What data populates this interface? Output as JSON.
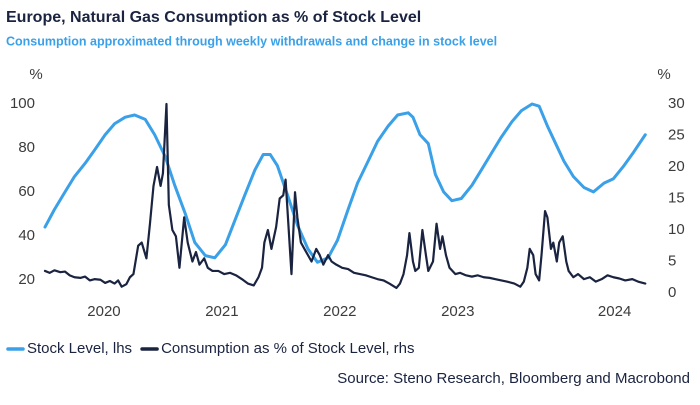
{
  "chart_data": {
    "type": "line",
    "title": "Europe, Natural Gas Consumption as % of Stock Level",
    "subtitle": "Consumption approximated through weekly withdrawals and change in stock level",
    "ylabel": "%",
    "y2label": "%",
    "source": "Source: Steno Research, Bloomberg and Macrobond",
    "xlim": [
      2019.8,
      2024.93
    ],
    "xticks": [
      {
        "value": 2020.3,
        "label": "2020"
      },
      {
        "value": 2021.3,
        "label": "2021"
      },
      {
        "value": 2022.3,
        "label": "2022"
      },
      {
        "value": 2023.3,
        "label": "2023"
      },
      {
        "value": 2024.63,
        "label": "2024"
      }
    ],
    "ylim": [
      14,
      100
    ],
    "yticks": [
      20,
      40,
      60,
      80,
      100
    ],
    "y2lim": [
      0,
      30
    ],
    "y2ticks": [
      0,
      5,
      10,
      15,
      20,
      25,
      30
    ],
    "grid": false,
    "legend": "bottom-left",
    "series": [
      {
        "name": "Stock Level, lhs",
        "color": "#3aa0e8",
        "axis": "y",
        "x": [
          2019.8,
          2019.88,
          2019.97,
          2020.05,
          2020.14,
          2020.22,
          2020.31,
          2020.39,
          2020.48,
          2020.56,
          2020.65,
          2020.73,
          2020.82,
          2020.9,
          2020.99,
          2021.07,
          2021.16,
          2021.24,
          2021.33,
          2021.41,
          2021.49,
          2021.58,
          2021.65,
          2021.71,
          2021.77,
          2021.86,
          2021.94,
          2022.03,
          2022.11,
          2022.2,
          2022.28,
          2022.37,
          2022.45,
          2022.54,
          2022.62,
          2022.71,
          2022.79,
          2022.88,
          2022.92,
          2022.98,
          2023.05,
          2023.11,
          2023.18,
          2023.25,
          2023.33,
          2023.42,
          2023.5,
          2023.59,
          2023.67,
          2023.76,
          2023.84,
          2023.93,
          2023.99,
          2024.06,
          2024.13,
          2024.2,
          2024.28,
          2024.37,
          2024.45,
          2024.54,
          2024.62,
          2024.71,
          2024.79,
          2024.89
        ],
        "values": [
          44,
          52,
          60,
          67,
          73,
          79,
          86,
          91,
          94,
          95,
          93,
          86,
          76,
          63,
          50,
          37,
          31,
          30,
          36,
          47,
          58,
          70,
          77,
          77,
          72,
          58,
          45,
          34,
          28,
          30,
          38,
          52,
          64,
          74,
          83,
          90,
          95,
          96,
          94,
          86,
          82,
          68,
          60,
          56,
          57,
          63,
          70,
          78,
          85,
          92,
          97,
          100,
          99,
          90,
          82,
          74,
          67,
          62,
          60,
          64,
          66,
          72,
          78,
          86
        ]
      },
      {
        "name": "Consumption as % of Stock Level, rhs",
        "color": "#1a2340",
        "axis": "y2",
        "x": [
          2019.8,
          2019.84,
          2019.88,
          2019.93,
          2019.97,
          2020.01,
          2020.05,
          2020.1,
          2020.14,
          2020.18,
          2020.22,
          2020.27,
          2020.31,
          2020.35,
          2020.39,
          2020.42,
          2020.45,
          2020.49,
          2020.52,
          2020.55,
          2020.59,
          2020.62,
          2020.66,
          2020.69,
          2020.72,
          2020.75,
          2020.78,
          2020.8,
          2020.83,
          2020.85,
          2020.88,
          2020.91,
          2020.94,
          2020.98,
          2021.01,
          2021.05,
          2021.08,
          2021.11,
          2021.15,
          2021.18,
          2021.22,
          2021.27,
          2021.32,
          2021.37,
          2021.42,
          2021.47,
          2021.52,
          2021.57,
          2021.61,
          2021.64,
          2021.66,
          2021.69,
          2021.72,
          2021.76,
          2021.79,
          2021.82,
          2021.84,
          2021.87,
          2021.89,
          2021.92,
          2021.94,
          2021.97,
          2022.0,
          2022.03,
          2022.06,
          2022.1,
          2022.13,
          2022.16,
          2022.2,
          2022.23,
          2022.27,
          2022.32,
          2022.37,
          2022.42,
          2022.47,
          2022.52,
          2022.57,
          2022.62,
          2022.67,
          2022.72,
          2022.78,
          2022.81,
          2022.84,
          2022.87,
          2022.89,
          2022.92,
          2022.94,
          2022.97,
          2023.0,
          2023.03,
          2023.05,
          2023.09,
          2023.12,
          2023.15,
          2023.17,
          2023.2,
          2023.23,
          2023.28,
          2023.32,
          2023.37,
          2023.42,
          2023.47,
          2023.52,
          2023.57,
          2023.62,
          2023.67,
          2023.72,
          2023.78,
          2023.83,
          2023.86,
          2023.89,
          2023.91,
          2023.94,
          2023.96,
          2023.99,
          2024.01,
          2024.04,
          2024.06,
          2024.09,
          2024.11,
          2024.14,
          2024.16,
          2024.19,
          2024.22,
          2024.24,
          2024.28,
          2024.32,
          2024.37,
          2024.42,
          2024.47,
          2024.52,
          2024.57,
          2024.62,
          2024.67,
          2024.72,
          2024.78,
          2024.83,
          2024.89
        ],
        "values": [
          3.5,
          3.2,
          3.6,
          3.3,
          3.4,
          2.8,
          2.5,
          2.4,
          2.6,
          2.0,
          2.2,
          2.1,
          1.6,
          1.9,
          1.5,
          2.0,
          1.0,
          1.4,
          2.5,
          3.0,
          7.5,
          8.0,
          5.5,
          11,
          17,
          20,
          17,
          19,
          30,
          14,
          10,
          9,
          4,
          12,
          8,
          5,
          6.5,
          4.5,
          5.5,
          4,
          3.5,
          3.5,
          3.0,
          3.2,
          2.8,
          2.2,
          1.5,
          1.2,
          2.5,
          4,
          8,
          10,
          7,
          10.5,
          15,
          15.5,
          18,
          9,
          3,
          16,
          12,
          8,
          7,
          6,
          5,
          7,
          6,
          4.5,
          6,
          5,
          4.5,
          4,
          3.8,
          3.2,
          3.0,
          2.8,
          2.5,
          2.2,
          2.0,
          1.5,
          0.8,
          1.5,
          3,
          6,
          9.5,
          5,
          3.5,
          4,
          10,
          6,
          3.5,
          5,
          11,
          7,
          9,
          6,
          4,
          3,
          3.2,
          2.8,
          2.6,
          2.8,
          2.5,
          2.4,
          2.2,
          2.0,
          1.8,
          1.5,
          1.0,
          1.8,
          4,
          7,
          6,
          3,
          2,
          6,
          13,
          12,
          7,
          8,
          5,
          8,
          9,
          5,
          3.5,
          2.5,
          3.0,
          2.2,
          2.5,
          1.8,
          2.2,
          2.8,
          2.5,
          2.3,
          2.0,
          2.2,
          1.8,
          1.5
        ]
      }
    ]
  }
}
